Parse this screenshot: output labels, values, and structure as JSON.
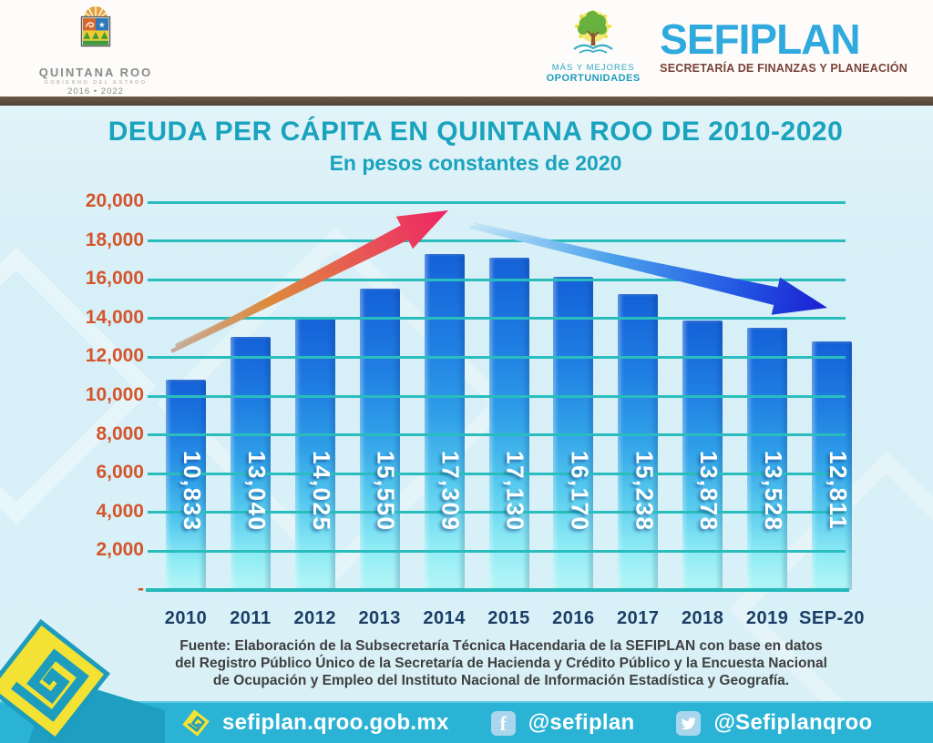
{
  "header": {
    "state_logo": {
      "title": "QUINTANA ROO",
      "subtitle": "GOBIERNO DEL ESTADO",
      "years": "2016 • 2022"
    },
    "brand": {
      "motto_line1": "MÁS Y MEJORES",
      "motto_line2": "OPORTUNIDADES",
      "name": "SEFIPLAN",
      "subtitle": "SECRETARÍA DE FINANZAS Y PLANEACIÓN"
    }
  },
  "chart_data": {
    "type": "bar",
    "title": "DEUDA PER CÁPITA EN QUINTANA ROO DE 2010-2020",
    "subtitle": "En pesos constantes de 2020",
    "categories": [
      "2010",
      "2011",
      "2012",
      "2013",
      "2014",
      "2015",
      "2016",
      "2017",
      "2018",
      "2019",
      "SEP-20"
    ],
    "values": [
      10833,
      13040,
      14025,
      15550,
      17309,
      17130,
      16170,
      15238,
      13878,
      13528,
      12811
    ],
    "value_labels": [
      "10,833",
      "13,040",
      "14,025",
      "15,550",
      "17,309",
      "17,130",
      "16,170",
      "15,238",
      "13,878",
      "13,528",
      "12,811"
    ],
    "y_axis": {
      "tick_labels": [
        "20,000",
        "18,000",
        "16,000",
        "14,000",
        "12,000",
        "10,000",
        "8,000",
        "6,000",
        "4,000",
        "2,000",
        "-"
      ],
      "tick_values": [
        20000,
        18000,
        16000,
        14000,
        12000,
        10000,
        8000,
        6000,
        4000,
        2000,
        0
      ]
    },
    "ylim": [
      0,
      20000
    ],
    "grid": true,
    "legend": "none",
    "trend_arrows": [
      {
        "direction": "up",
        "from_year": "2010",
        "to_year": "2014",
        "color": "#ef2465"
      },
      {
        "direction": "down",
        "from_year": "2015",
        "to_year": "SEP-20",
        "color": "#1b1ed2"
      }
    ],
    "colors": {
      "bar_top": "#1461d8",
      "bar_bottom": "#b5f6f8",
      "gridline": "#2abdbd",
      "y_tick": "#d4552c",
      "x_tick": "#1b3e66",
      "title": "#1aa3bd"
    }
  },
  "source": {
    "lines": [
      "Fuente: Elaboración de la Subsecretaría Técnica Hacendaria de la SEFIPLAN con base en datos",
      "del Registro Público Único de la Secretaría de Hacienda y Crédito Público y la Encuesta Nacional",
      "de Ocupación y Empleo del Instituto Nacional de Información Estadística y Geografía."
    ]
  },
  "footer": {
    "website": "sefiplan.qroo.gob.mx",
    "facebook": "@sefiplan",
    "twitter": "@Sefiplanqroo",
    "icons": {
      "website_icon": "sefiplan-diamond-spiral",
      "facebook_icon": "f",
      "twitter_icon": "bird"
    },
    "background": "#2bb3d5"
  }
}
